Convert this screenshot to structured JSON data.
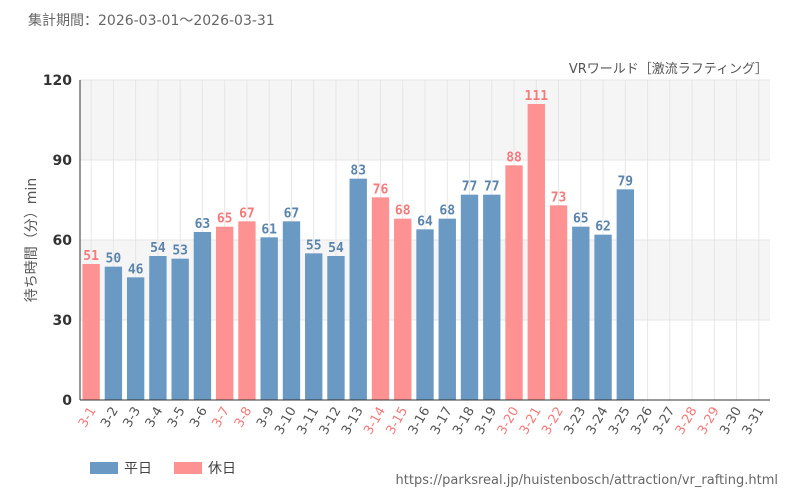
{
  "period": "集計期間：2026-03-01～2026-03-31",
  "source_url": "https://parksreal.jp/huistenbosch/attraction/vr_rafting.html",
  "chart_data": {
    "type": "bar",
    "title": "VRワールド［激流ラフティング］",
    "xlabel": "",
    "ylabel": "待ち時間（分）min",
    "ylim": [
      0,
      120
    ],
    "yticks": [
      0,
      30,
      60,
      90,
      120
    ],
    "grid": true,
    "legend_position": "bottom-left",
    "categories": [
      "3-1",
      "3-2",
      "3-3",
      "3-4",
      "3-5",
      "3-6",
      "3-7",
      "3-8",
      "3-9",
      "3-10",
      "3-11",
      "3-12",
      "3-13",
      "3-14",
      "3-15",
      "3-16",
      "3-17",
      "3-18",
      "3-19",
      "3-20",
      "3-21",
      "3-22",
      "3-23",
      "3-24",
      "3-25",
      "3-26",
      "3-27",
      "3-28",
      "3-29",
      "3-30",
      "3-31"
    ],
    "values": [
      51,
      50,
      46,
      54,
      53,
      63,
      65,
      67,
      61,
      67,
      55,
      54,
      83,
      76,
      68,
      64,
      68,
      77,
      77,
      88,
      111,
      73,
      65,
      62,
      79,
      null,
      null,
      null,
      null,
      null,
      null
    ],
    "holidays": [
      true,
      false,
      false,
      false,
      false,
      false,
      true,
      true,
      false,
      false,
      false,
      false,
      false,
      true,
      true,
      false,
      false,
      false,
      false,
      true,
      true,
      true,
      false,
      false,
      false,
      false,
      false,
      true,
      true,
      false,
      false
    ],
    "legend": [
      {
        "name": "平日",
        "color": "#6a99c3"
      },
      {
        "name": "休日",
        "color": "#fe9292"
      }
    ],
    "colors": {
      "weekday": "#6a99c3",
      "holiday": "#fe9292",
      "weekday_label": "#5a84ab",
      "holiday_label": "#f47b7b",
      "axis_text": "#555555",
      "grid": "#e6e6e6",
      "band": "#f5f5f5"
    }
  }
}
